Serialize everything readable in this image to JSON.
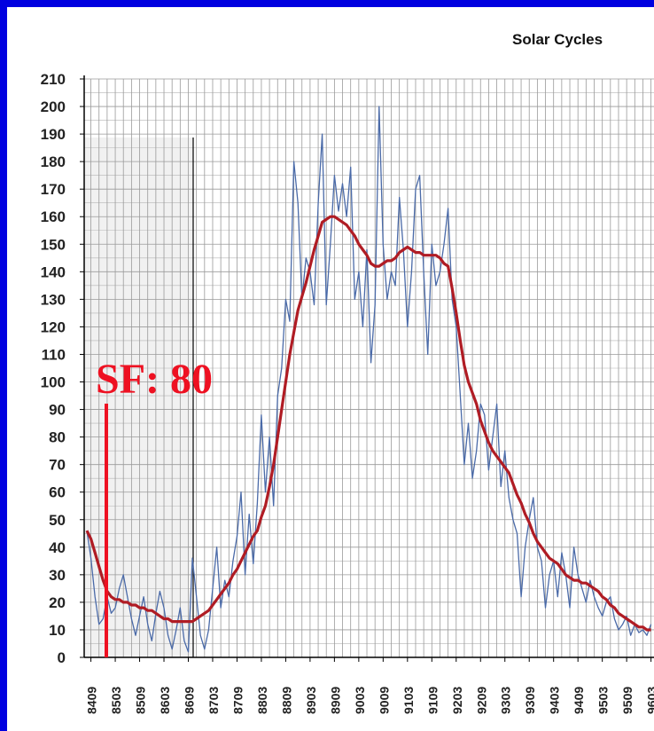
{
  "chart_data": {
    "type": "line",
    "title": "Solar Cycles",
    "annotation": "SF: 80",
    "x": [
      null,
      "8409",
      null,
      null,
      null,
      null,
      null,
      "8503",
      null,
      null,
      null,
      null,
      null,
      "8509",
      null,
      null,
      null,
      null,
      null,
      "8603",
      null,
      null,
      null,
      null,
      null,
      "8609",
      null,
      null,
      null,
      null,
      null,
      "8703",
      null,
      null,
      null,
      null,
      null,
      "8709",
      null,
      null,
      null,
      null,
      null,
      "8803",
      null,
      null,
      null,
      null,
      null,
      "8809",
      null,
      null,
      null,
      null,
      null,
      "8903",
      null,
      null,
      null,
      null,
      null,
      "8909",
      null,
      null,
      null,
      null,
      null,
      "9003",
      null,
      null,
      null,
      null,
      null,
      "9009",
      null,
      null,
      null,
      null,
      null,
      "9103",
      null,
      null,
      null,
      null,
      null,
      "9109",
      null,
      null,
      null,
      null,
      null,
      "9203",
      null,
      null,
      null,
      null,
      null,
      "9209",
      null,
      null,
      null,
      null,
      null,
      "9303",
      null,
      null,
      null,
      null,
      null,
      "9309",
      null,
      null,
      null,
      null,
      null,
      "9403",
      null,
      null,
      null,
      null,
      null,
      "9409",
      null,
      null,
      null,
      null,
      null,
      "9503",
      null,
      null,
      null,
      null,
      null,
      "9509",
      null,
      null,
      null,
      null,
      null,
      "9603"
    ],
    "series": [
      {
        "color": "#4a6aa8",
        "values": [
          46,
          36,
          22,
          12,
          14,
          22,
          16,
          18,
          25,
          30,
          22,
          14,
          8,
          15,
          22,
          12,
          6,
          16,
          24,
          18,
          8,
          3,
          10,
          18,
          6,
          2,
          36,
          22,
          8,
          3,
          10,
          25,
          40,
          18,
          28,
          22,
          35,
          44,
          60,
          30,
          52,
          34,
          56,
          88,
          60,
          80,
          55,
          95,
          105,
          130,
          122,
          180,
          165,
          130,
          145,
          140,
          128,
          165,
          190,
          128,
          150,
          175,
          162,
          172,
          160,
          178,
          130,
          140,
          120,
          148,
          107,
          128,
          200,
          150,
          130,
          140,
          135,
          167,
          148,
          120,
          140,
          170,
          175,
          140,
          110,
          150,
          135,
          140,
          150,
          163,
          130,
          120,
          95,
          70,
          85,
          65,
          75,
          92,
          88,
          68,
          80,
          92,
          62,
          75,
          58,
          50,
          45,
          22,
          40,
          50,
          58,
          40,
          35,
          18,
          30,
          35,
          22,
          38,
          30,
          18,
          40,
          30,
          25,
          20,
          28,
          22,
          18,
          15,
          20,
          22,
          14,
          10,
          12,
          15,
          8,
          12,
          9,
          10,
          8,
          12
        ]
      },
      {
        "color": "#b01c24",
        "values": [
          46,
          43,
          38,
          33,
          28,
          24,
          22,
          21,
          21,
          20,
          20,
          19,
          19,
          18,
          18,
          17,
          17,
          16,
          15,
          14,
          14,
          13,
          13,
          13,
          13,
          13,
          13,
          14,
          15,
          16,
          17,
          19,
          21,
          23,
          25,
          27,
          30,
          32,
          35,
          38,
          41,
          44,
          46,
          51,
          55,
          62,
          70,
          80,
          90,
          100,
          110,
          118,
          126,
          131,
          136,
          142,
          148,
          153,
          158,
          159,
          160,
          160,
          159,
          158,
          157,
          155,
          153,
          150,
          148,
          146,
          143,
          142,
          142,
          143,
          144,
          144,
          145,
          147,
          148,
          149,
          148,
          147,
          147,
          146,
          146,
          146,
          146,
          145,
          143,
          142,
          134,
          125,
          115,
          106,
          100,
          96,
          92,
          86,
          82,
          78,
          75,
          73,
          71,
          69,
          67,
          63,
          59,
          56,
          52,
          49,
          45,
          42,
          40,
          38,
          36,
          35,
          34,
          32,
          30,
          29,
          28,
          28,
          27,
          27,
          26,
          25,
          24,
          22,
          21,
          19,
          18,
          16,
          15,
          14,
          13,
          12,
          11,
          11,
          10,
          10
        ]
      }
    ],
    "ylim": [
      0,
      210
    ],
    "yticks": [
      0,
      10,
      20,
      30,
      40,
      50,
      60,
      70,
      80,
      90,
      100,
      110,
      120,
      130,
      140,
      150,
      160,
      170,
      180,
      190,
      200,
      210
    ],
    "grid": true
  }
}
